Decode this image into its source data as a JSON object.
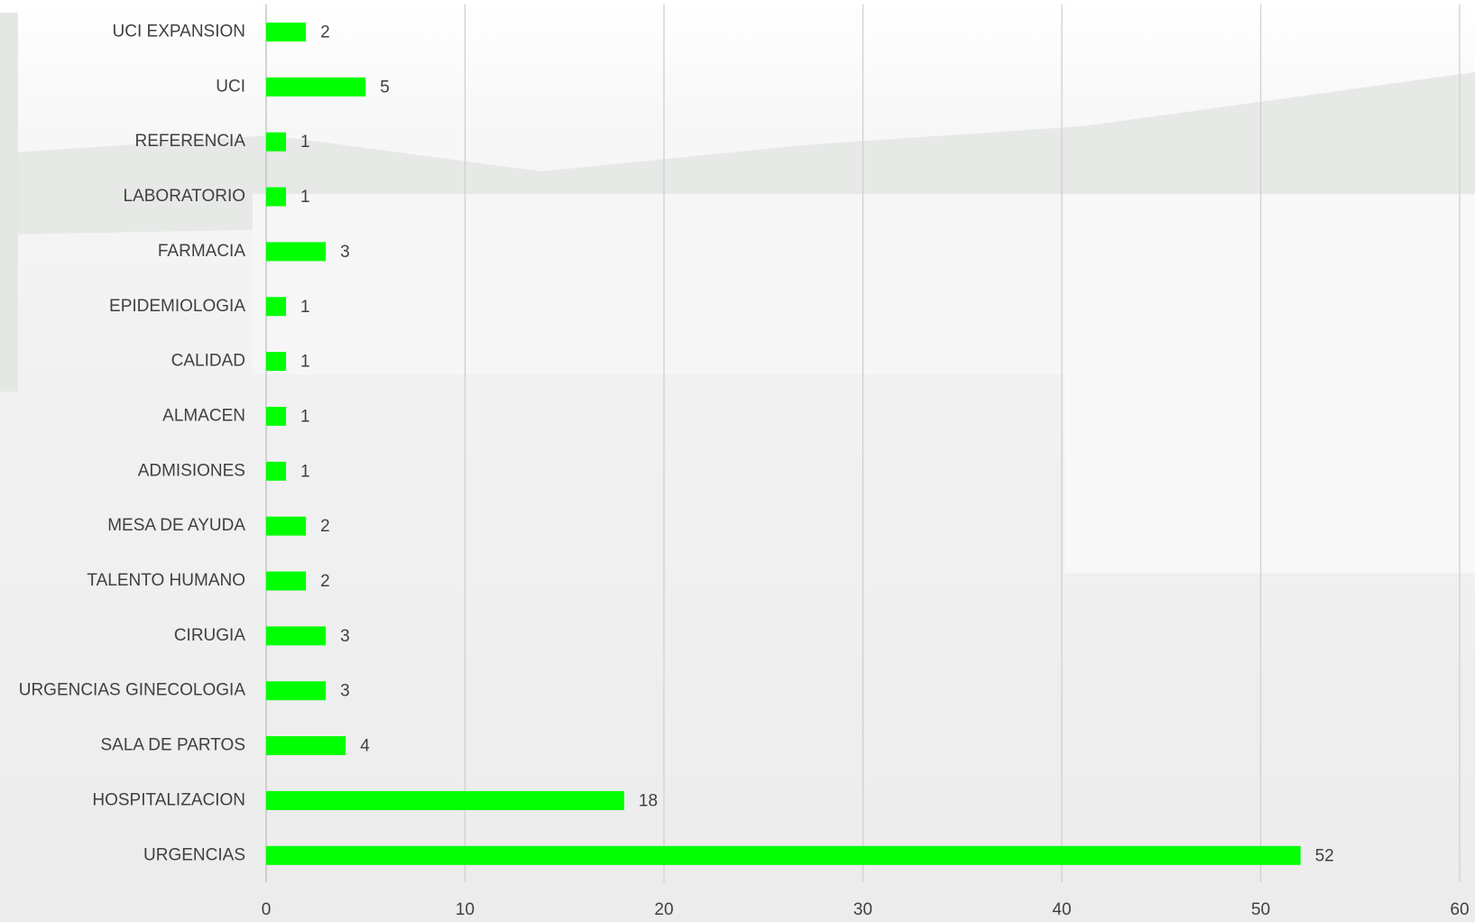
{
  "chart_data": {
    "type": "bar",
    "orientation": "horizontal",
    "categories": [
      "UCI EXPANSION",
      "UCI",
      "REFERENCIA",
      "LABORATORIO",
      "FARMACIA",
      "EPIDEMIOLOGIA",
      "CALIDAD",
      "ALMACEN",
      "ADMISIONES",
      "MESA DE AYUDA",
      "TALENTO HUMANO",
      "CIRUGIA",
      "URGENCIAS GINECOLOGIA",
      "SALA DE PARTOS",
      "HOSPITALIZACION",
      "URGENCIAS"
    ],
    "values": [
      2,
      5,
      1,
      1,
      3,
      1,
      1,
      1,
      1,
      2,
      2,
      3,
      3,
      4,
      18,
      52
    ],
    "color": "#00ff00",
    "xlim": [
      0,
      60
    ],
    "xticks": [
      0,
      10,
      20,
      30,
      40,
      50,
      60
    ],
    "grid": true
  }
}
